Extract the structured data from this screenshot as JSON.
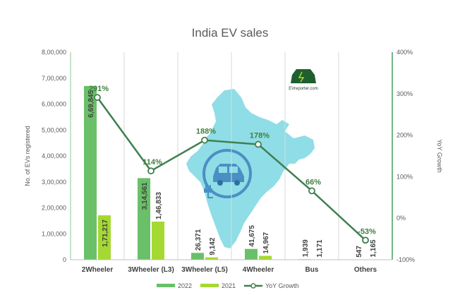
{
  "chart_data": {
    "type": "bar",
    "title": "India EV sales",
    "categories": [
      "2Wheeler",
      "3Wheeler (L3)",
      "3Wheeler (L5)",
      "4Wheeler",
      "Bus",
      "Others"
    ],
    "series": [
      {
        "name": "2022",
        "values": [
          669845,
          314561,
          26371,
          41675,
          1939,
          547
        ],
        "labels": [
          "6,69,845",
          "3,14,561",
          "26,371",
          "41,675",
          "1,939",
          "547"
        ]
      },
      {
        "name": "2021",
        "values": [
          171217,
          146833,
          9142,
          14967,
          1171,
          1165
        ],
        "labels": [
          "1,71,217",
          "1,46,833",
          "9,142",
          "14,967",
          "1,171",
          "1,165"
        ]
      }
    ],
    "line_series": {
      "name": "YoY Growth",
      "values": [
        291,
        114,
        188,
        178,
        66,
        -53
      ],
      "labels": [
        "291%",
        "114%",
        "188%",
        "178%",
        "66%",
        "-53%"
      ]
    },
    "ylabel": "No. of EVs registered",
    "y2label": "YoY Growth",
    "ylim": [
      0,
      800000
    ],
    "y2lim": [
      -100,
      400
    ],
    "yticks": [
      "0",
      "1,00,000",
      "2,00,000",
      "3,00,000",
      "4,00,000",
      "5,00,000",
      "6,00,000",
      "7,00,000",
      "8,00,000"
    ],
    "y2ticks": [
      "-100%",
      "0%",
      "100%",
      "200%",
      "300%",
      "400%"
    ],
    "colors": {
      "2022": "#6abf69",
      "2021": "#a6d832",
      "YoY Growth": "#3f7f4f",
      "map": "#8fdde6"
    },
    "grid": false,
    "legend_position": "bottom"
  },
  "logo": {
    "text": "EVreporter.com"
  }
}
